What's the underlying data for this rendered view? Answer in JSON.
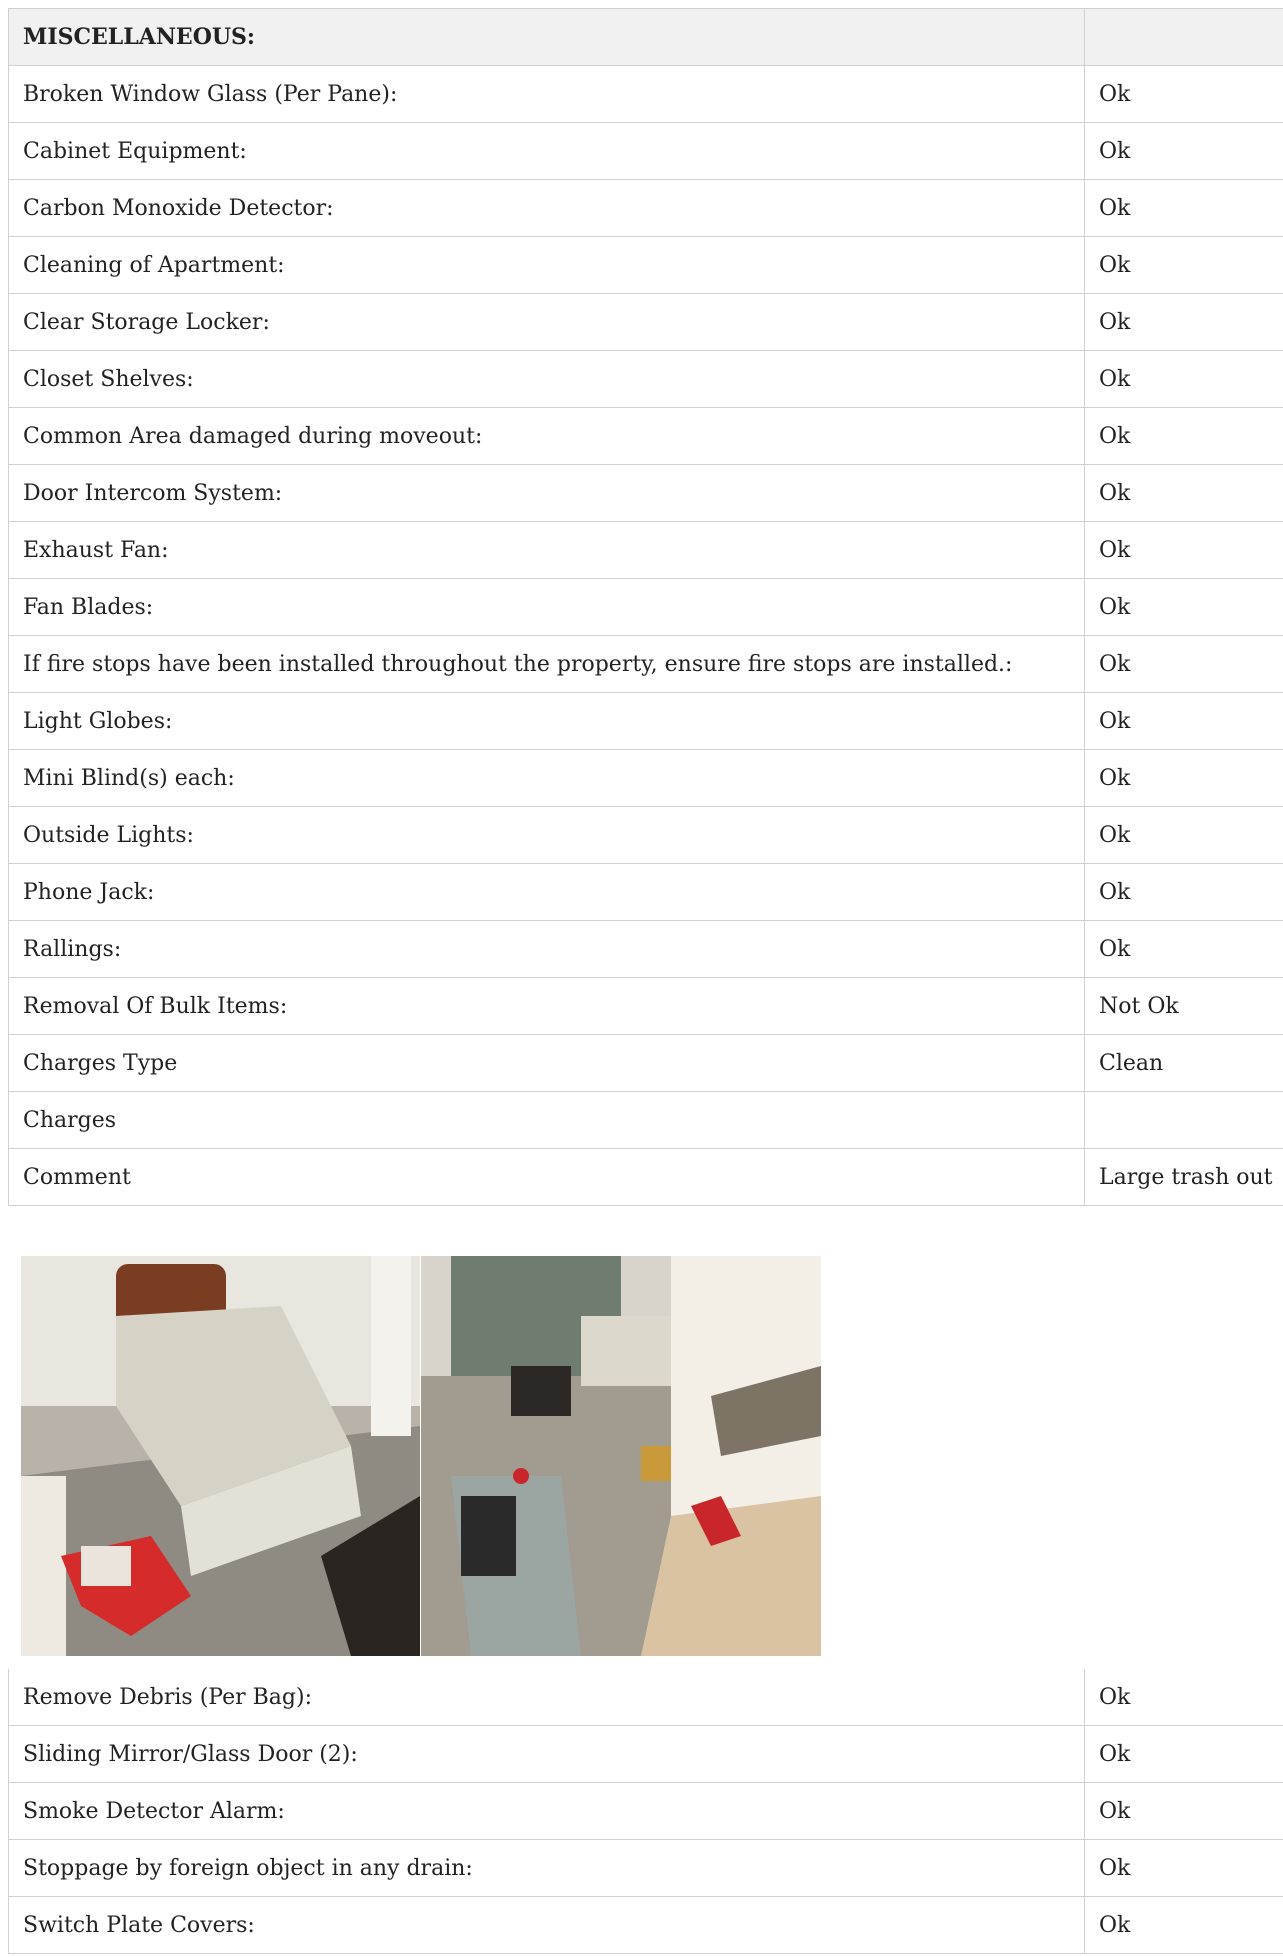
{
  "table1": {
    "header": "MISCELLANEOUS:",
    "rows": [
      [
        "Broken Window Glass (Per Pane):",
        "Ok"
      ],
      [
        "Cabinet Equipment:",
        "Ok"
      ],
      [
        "Carbon Monoxide Detector:",
        "Ok"
      ],
      [
        "Cleaning of Apartment:",
        "Ok"
      ],
      [
        "Clear Storage Locker:",
        "Ok"
      ],
      [
        "Closet Shelves:",
        "Ok"
      ],
      [
        "Common Area damaged during moveout:",
        "Ok"
      ],
      [
        "Door Intercom System:",
        "Ok"
      ],
      [
        "Exhaust Fan:",
        "Ok"
      ],
      [
        "Fan Blades:",
        "Ok"
      ],
      [
        "If fire stops have been installed throughout the property, ensure fire stops are installed.:",
        "Ok"
      ],
      [
        "Light Globes:",
        "Ok"
      ],
      [
        "Mini Blind(s) each:",
        "Ok"
      ],
      [
        "Outside Lights:",
        "Ok"
      ],
      [
        "Phone Jack:",
        "Ok"
      ],
      [
        "Rallings:",
        "Ok"
      ],
      [
        "Removal Of Bulk Items:",
        "Not Ok"
      ],
      [
        "Charges Type",
        "Clean"
      ],
      [
        "Charges"
      ],
      [
        "Comment",
        "Large trash out"
      ]
    ]
  },
  "table2": {
    "rows": [
      [
        "Remove Debris (Per Bag):",
        "Ok"
      ],
      [
        "Sliding Mirror/Glass Door (2):",
        "Ok"
      ],
      [
        "Smoke Detector Alarm:",
        "Ok"
      ],
      [
        "Stoppage by foreign object in any drain:",
        "Ok"
      ],
      [
        "Switch Plate Covers:",
        "Ok"
      ]
    ]
  }
}
